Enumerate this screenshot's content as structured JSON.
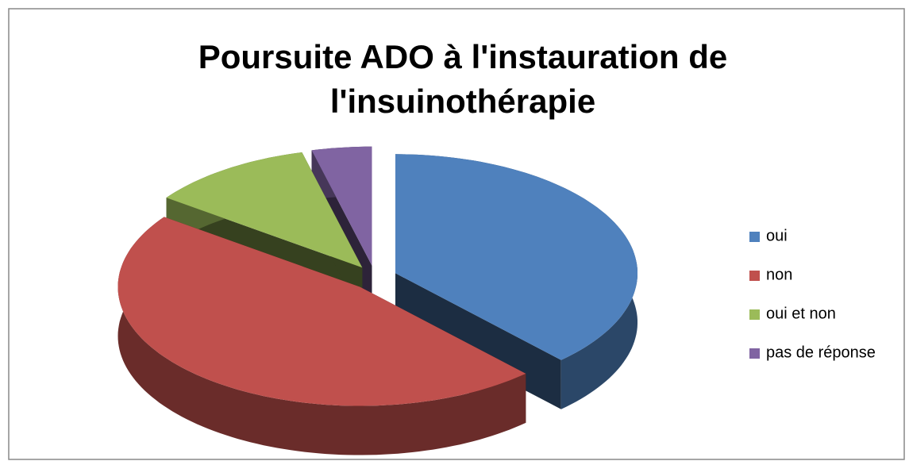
{
  "chart_data": {
    "type": "pie",
    "title": [
      "Poursuite ADO à l'instauration de",
      "l'insuinothérapie"
    ],
    "categories": [
      "oui",
      "non",
      "oui et non",
      "pas de réponse"
    ],
    "values": [
      38,
      47,
      11,
      4
    ],
    "colors": [
      "#4f81bd",
      "#c0504d",
      "#9bbb59",
      "#8064a2"
    ],
    "legend": "right"
  }
}
